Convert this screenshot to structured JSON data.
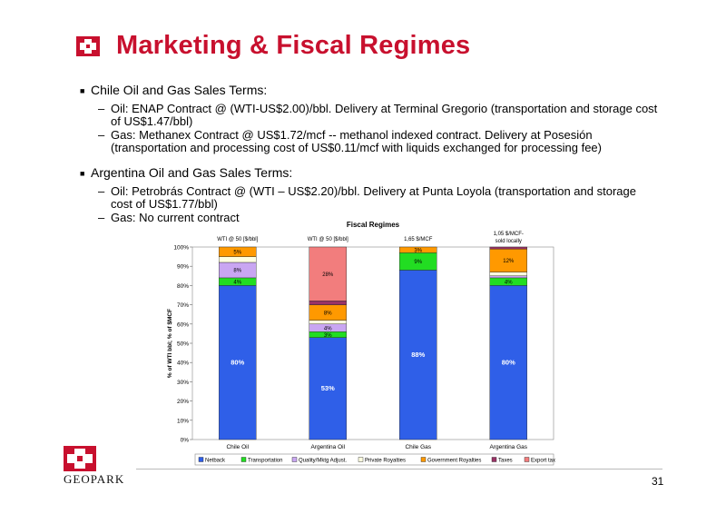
{
  "slide": {
    "title": "Marketing & Fiscal Regimes",
    "page_number": "31",
    "company": "GEOPARK"
  },
  "bullets": [
    {
      "heading": "Chile Oil and Gas Sales Terms:",
      "items": [
        "Oil: ENAP Contract @  (WTI-US$2.00)/bbl.  Delivery at Terminal Gregorio (transportation and storage cost of US$1.47/bbl)",
        "Gas: Methanex Contract @ US$1.72/mcf -- methanol indexed contract.  Delivery at Posesión (transportation and processing cost of US$0.11/mcf with liquids exchanged for processing fee)"
      ]
    },
    {
      "heading": "Argentina Oil and Gas Sales Terms:",
      "items": [
        "Oil: Petrobrás Contract @ (WTI – US$2.20)/bbl.  Delivery at Punta Loyola (transportation and storage cost of US$1.77/bbl)",
        "Gas: No current contract"
      ]
    }
  ],
  "chart_data": {
    "type": "bar",
    "stacked": true,
    "title": "Fiscal Regimes",
    "ylabel": "% of WTI bbl; % of $MCF",
    "ylim": [
      0,
      100
    ],
    "yticks": [
      "0%",
      "10%",
      "20%",
      "30%",
      "40%",
      "50%",
      "60%",
      "70%",
      "80%",
      "90%",
      "100%"
    ],
    "categories": [
      "Chile Oil",
      "Argentina Oil",
      "Chile Gas",
      "Argentina Gas"
    ],
    "top_labels": [
      "WTI @ 50 [$/bbl]",
      "WTI @ 50 [$/bbl]",
      "1,65 $/MCF",
      "1,05 $/MCF- sold locally"
    ],
    "legend_position": "bottom",
    "series": [
      {
        "name": "Netback",
        "color": "#2f5fe8",
        "values": [
          80,
          53,
          88,
          80
        ],
        "labels": [
          "80%",
          "53%",
          "88%",
          "80%"
        ]
      },
      {
        "name": "Transportation",
        "color": "#22dd22",
        "values": [
          4,
          3,
          9,
          4
        ],
        "labels": [
          "4%",
          "3%",
          "9%",
          "4%"
        ]
      },
      {
        "name": "Quality/Mktg Adjust.",
        "color": "#c9a6f2",
        "values": [
          8,
          4,
          0,
          1
        ],
        "labels": [
          "8%",
          "4%",
          "",
          ""
        ]
      },
      {
        "name": "Private Royalties",
        "color": "#ffffe0",
        "values": [
          3,
          2,
          0,
          2
        ],
        "labels": [
          "",
          "",
          "",
          ""
        ]
      },
      {
        "name": "Government Royalties",
        "color": "#ff9900",
        "values": [
          5,
          8,
          3,
          12
        ],
        "labels": [
          "5%",
          "8%",
          "3%",
          "12%"
        ]
      },
      {
        "name": "Taxes",
        "color": "#993366",
        "values": [
          0,
          2,
          0,
          1
        ],
        "labels": [
          "",
          "",
          "",
          ""
        ]
      },
      {
        "name": "Export tax",
        "color": "#f27d7d",
        "values": [
          0,
          28,
          0,
          0
        ],
        "labels": [
          "",
          "28%",
          "",
          ""
        ]
      }
    ]
  }
}
